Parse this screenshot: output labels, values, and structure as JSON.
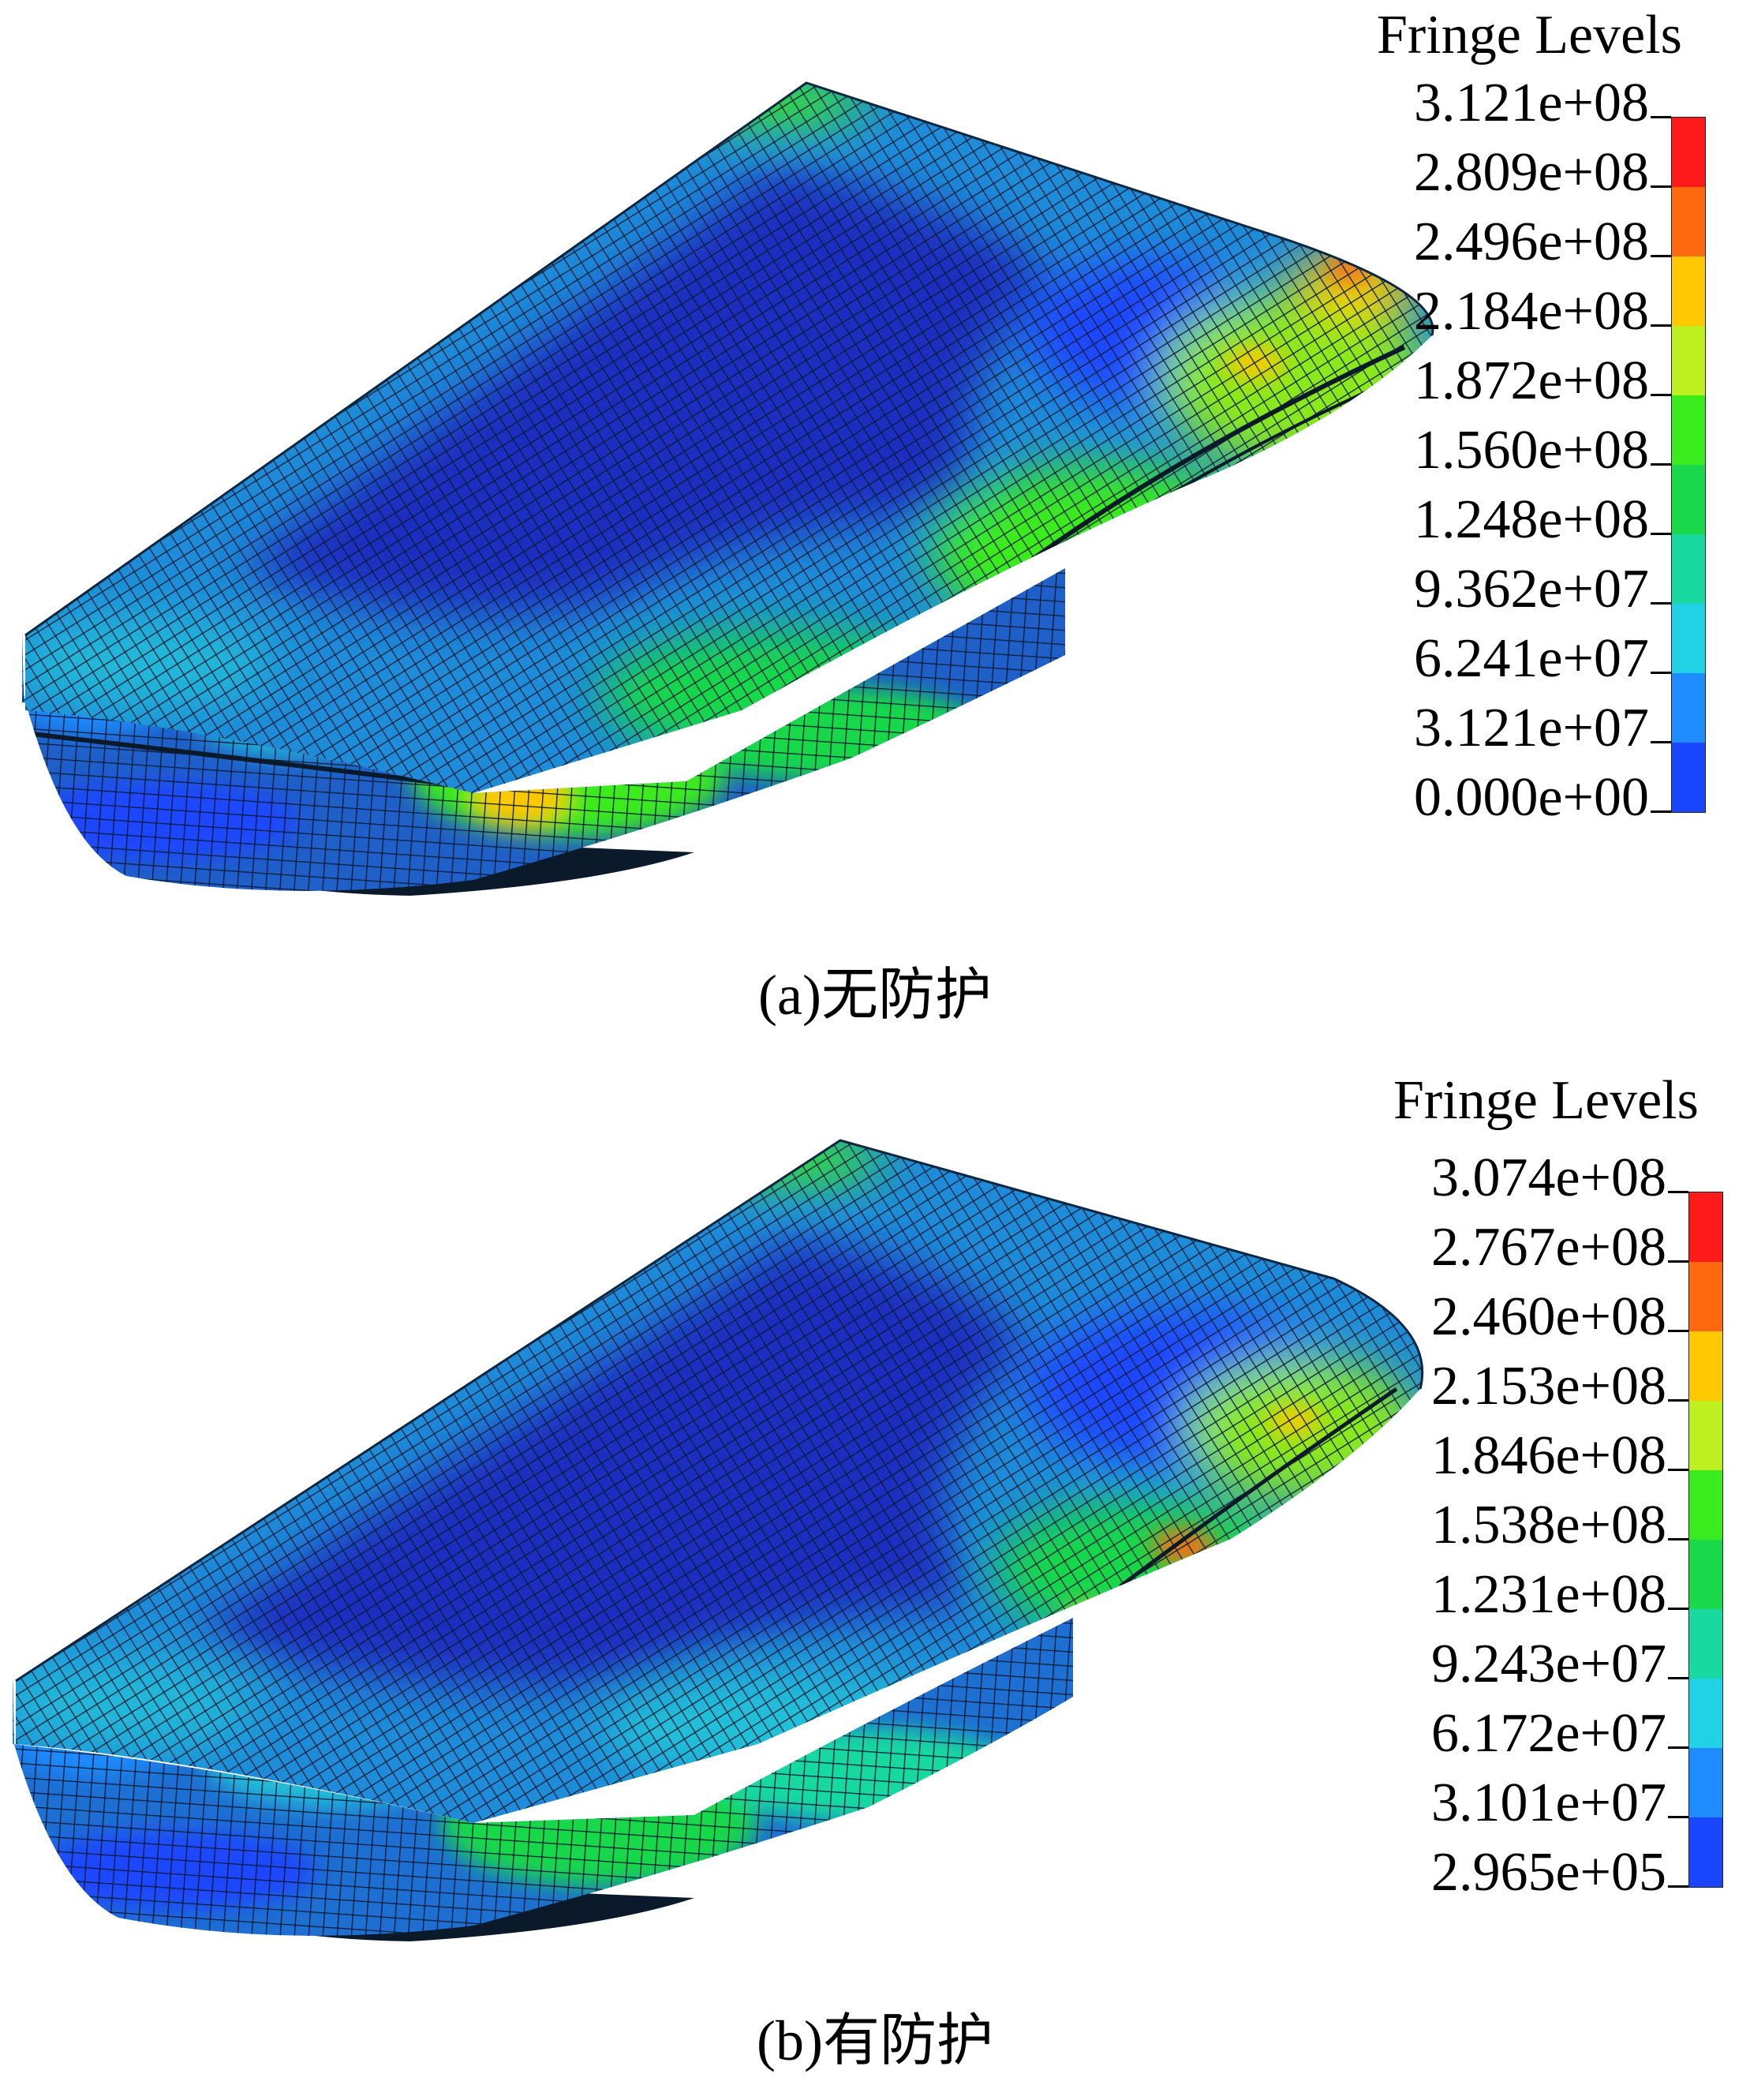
{
  "figures": [
    {
      "id": "a",
      "legend_title": "Fringe Levels",
      "levels": [
        "3.121e+08",
        "2.809e+08",
        "2.496e+08",
        "2.184e+08",
        "1.872e+08",
        "1.560e+08",
        "1.248e+08",
        "9.362e+07",
        "6.241e+07",
        "3.121e+07",
        "0.000e+00"
      ],
      "caption": "(a)无防护"
    },
    {
      "id": "b",
      "legend_title": "Fringe Levels",
      "levels": [
        "3.074e+08",
        "2.767e+08",
        "2.460e+08",
        "2.153e+08",
        "1.846e+08",
        "1.538e+08",
        "1.231e+08",
        "9.243e+07",
        "6.172e+07",
        "3.101e+07",
        "2.965e+05"
      ],
      "caption": "(b)有防护"
    }
  ],
  "colormap": [
    "#ff1a1a",
    "#ff6a10",
    "#ffc800",
    "#bdf01e",
    "#3aeb1e",
    "#19d84a",
    "#18d9a0",
    "#21d2e6",
    "#1e8cff",
    "#1a46ff"
  ]
}
